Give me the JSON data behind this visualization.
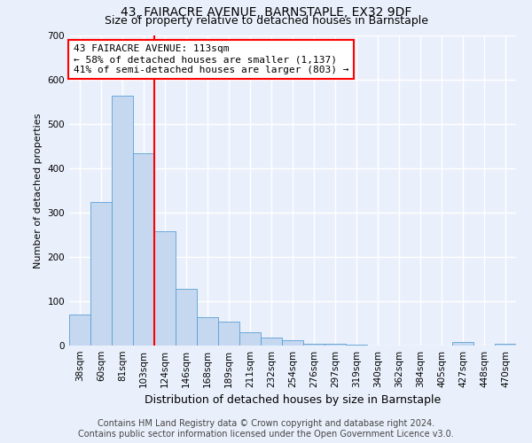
{
  "title": "43, FAIRACRE AVENUE, BARNSTAPLE, EX32 9DF",
  "subtitle": "Size of property relative to detached houses in Barnstaple",
  "xlabel": "Distribution of detached houses by size in Barnstaple",
  "ylabel": "Number of detached properties",
  "bar_labels": [
    "38sqm",
    "60sqm",
    "81sqm",
    "103sqm",
    "124sqm",
    "146sqm",
    "168sqm",
    "189sqm",
    "211sqm",
    "232sqm",
    "254sqm",
    "276sqm",
    "297sqm",
    "319sqm",
    "340sqm",
    "362sqm",
    "384sqm",
    "405sqm",
    "427sqm",
    "448sqm",
    "470sqm"
  ],
  "bar_values": [
    70,
    325,
    565,
    435,
    258,
    128,
    65,
    55,
    30,
    18,
    12,
    5,
    5,
    2,
    1,
    0,
    0,
    0,
    8,
    0,
    5
  ],
  "bar_color": "#c5d8f0",
  "bar_edge_color": "#5a9fd4",
  "vline_x_index": 3,
  "vline_color": "red",
  "annotation_text": "43 FAIRACRE AVENUE: 113sqm\n← 58% of detached houses are smaller (1,137)\n41% of semi-detached houses are larger (803) →",
  "annotation_box_color": "white",
  "annotation_box_edge_color": "red",
  "ylim": [
    0,
    700
  ],
  "yticks": [
    0,
    100,
    200,
    300,
    400,
    500,
    600,
    700
  ],
  "footer_text": "Contains HM Land Registry data © Crown copyright and database right 2024.\nContains public sector information licensed under the Open Government Licence v3.0.",
  "bg_color": "#eaf0fb",
  "plot_bg_color": "#eaf0fb",
  "grid_color": "white",
  "title_fontsize": 10,
  "subtitle_fontsize": 9,
  "footer_fontsize": 7,
  "annotation_fontsize": 8,
  "ylabel_fontsize": 8,
  "xlabel_fontsize": 9,
  "tick_fontsize": 7.5
}
